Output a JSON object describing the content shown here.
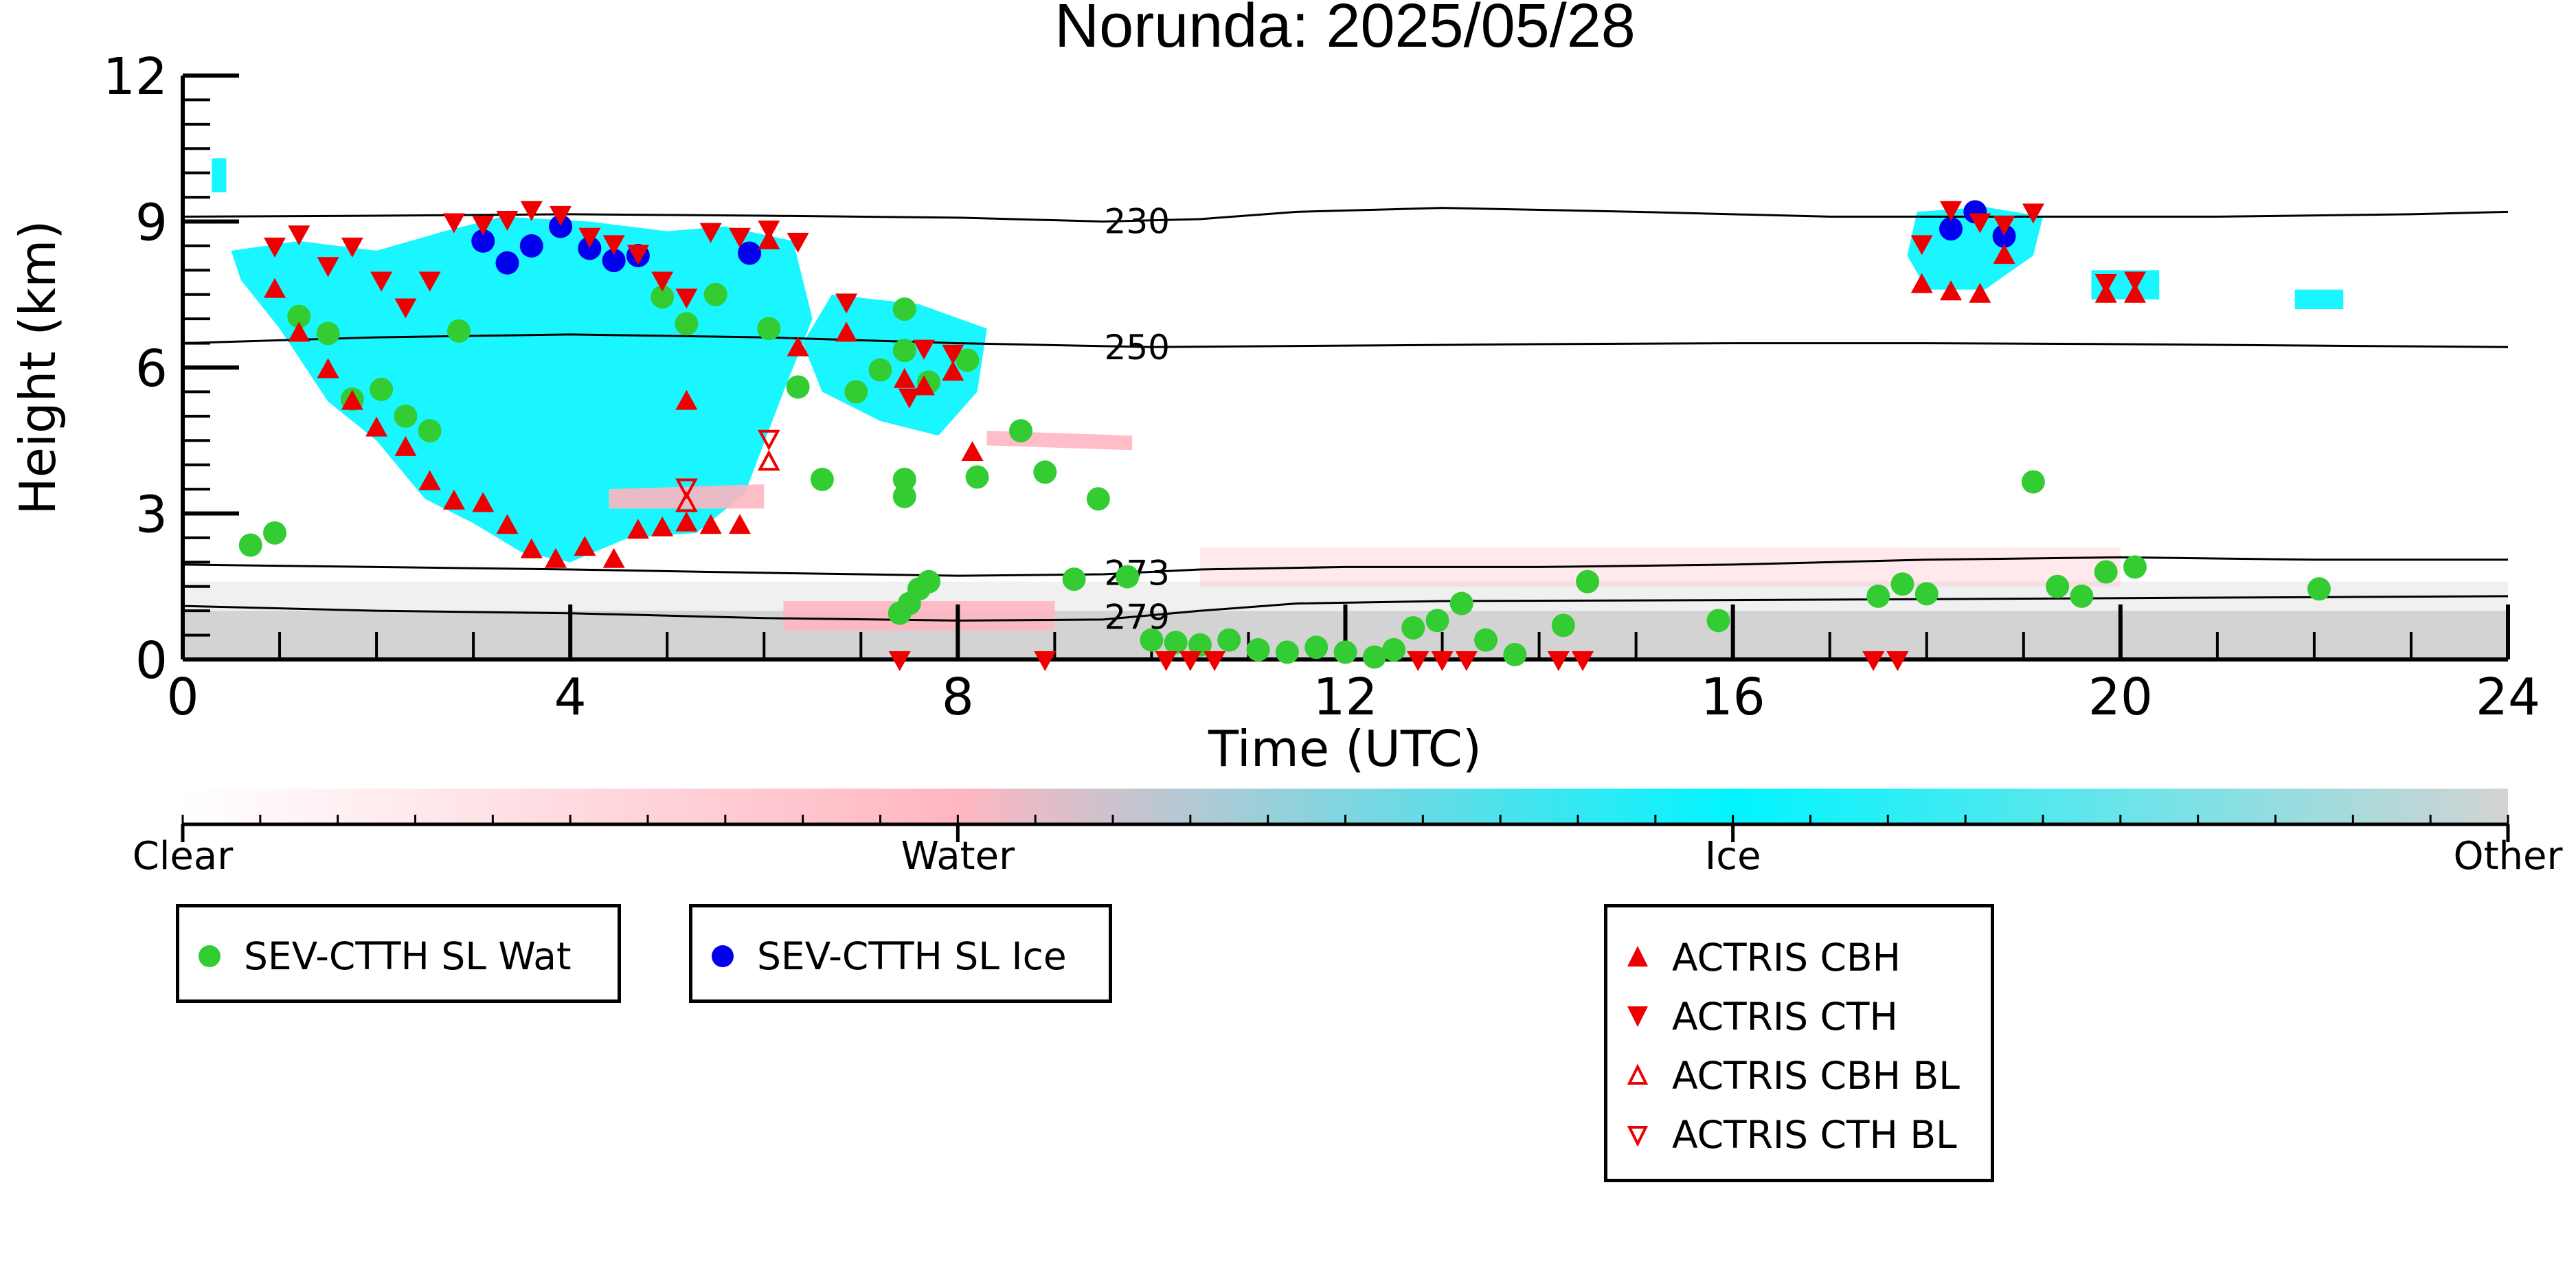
{
  "chart_data": {
    "type": "scatter",
    "title": "Norunda: 2025/05/28",
    "xlabel": "Time (UTC)",
    "ylabel": "Height (km)",
    "xlim": [
      0,
      24
    ],
    "ylim": [
      0,
      12
    ],
    "xticks": [
      "0",
      "4",
      "8",
      "12",
      "16",
      "20",
      "24"
    ],
    "yticks": [
      "0",
      "3",
      "6",
      "9",
      "12"
    ],
    "grid": false,
    "isotherms": [
      {
        "label": "230",
        "x": [
          0,
          2,
          4,
          6,
          8,
          9.5,
          10.5,
          11.5,
          13,
          15,
          17,
          19,
          21,
          23,
          24
        ],
        "y": [
          9.1,
          9.12,
          9.15,
          9.12,
          9.08,
          9.0,
          9.05,
          9.2,
          9.28,
          9.2,
          9.1,
          9.1,
          9.1,
          9.15,
          9.2
        ]
      },
      {
        "label": "250",
        "x": [
          0,
          2,
          4,
          6,
          8,
          10,
          12,
          14,
          16,
          18,
          20,
          22,
          24
        ],
        "y": [
          6.5,
          6.62,
          6.68,
          6.62,
          6.5,
          6.42,
          6.45,
          6.48,
          6.5,
          6.5,
          6.48,
          6.45,
          6.42
        ]
      },
      {
        "label": "273",
        "x": [
          0,
          2,
          4,
          6,
          8,
          9.5,
          10.5,
          12,
          14,
          16,
          18,
          20,
          22,
          24
        ],
        "y": [
          1.95,
          1.9,
          1.85,
          1.78,
          1.72,
          1.75,
          1.85,
          1.9,
          1.9,
          1.95,
          2.05,
          2.1,
          2.05,
          2.05
        ]
      },
      {
        "label": "279",
        "x": [
          0,
          2,
          4,
          6,
          8,
          9.5,
          10.5,
          11.5,
          13,
          16,
          19,
          22,
          24
        ],
        "y": [
          1.1,
          1.0,
          0.95,
          0.85,
          0.8,
          0.82,
          1.0,
          1.15,
          1.2,
          1.22,
          1.25,
          1.28,
          1.3
        ]
      }
    ],
    "background_regions": [
      {
        "category": "Other",
        "x": [
          0,
          24
        ],
        "y": [
          0,
          1.0
        ],
        "opacity": 1.0
      },
      {
        "category": "Other",
        "x": [
          0,
          24
        ],
        "y": [
          1.0,
          1.6
        ],
        "opacity": 0.35
      },
      {
        "category": "Water",
        "x": [
          10.5,
          20
        ],
        "y": [
          1.5,
          2.3
        ],
        "opacity": 0.3
      }
    ],
    "cloud_regions": [
      {
        "category": "Ice",
        "polygon": [
          [
            0.5,
            8.4
          ],
          [
            1.2,
            8.6
          ],
          [
            2.0,
            8.4
          ],
          [
            2.7,
            8.8
          ],
          [
            3.3,
            9.1
          ],
          [
            4.2,
            9.0
          ],
          [
            5.0,
            8.8
          ],
          [
            5.6,
            8.9
          ],
          [
            6.3,
            8.6
          ],
          [
            6.5,
            7.0
          ],
          [
            6.2,
            5.5
          ],
          [
            5.8,
            3.4
          ],
          [
            5.3,
            2.6
          ],
          [
            4.6,
            2.5
          ],
          [
            4.0,
            2.0
          ],
          [
            3.5,
            2.2
          ],
          [
            3.0,
            2.8
          ],
          [
            2.5,
            3.3
          ],
          [
            2.0,
            4.5
          ],
          [
            1.5,
            5.3
          ],
          [
            1.0,
            6.8
          ],
          [
            0.6,
            7.8
          ]
        ]
      },
      {
        "category": "Ice",
        "polygon": [
          [
            6.7,
            7.5
          ],
          [
            7.6,
            7.3
          ],
          [
            8.3,
            6.8
          ],
          [
            8.2,
            5.5
          ],
          [
            7.8,
            4.6
          ],
          [
            7.2,
            4.9
          ],
          [
            6.6,
            5.5
          ],
          [
            6.4,
            6.5
          ]
        ]
      },
      {
        "category": "Ice",
        "polygon": [
          [
            17.9,
            9.2
          ],
          [
            18.6,
            9.3
          ],
          [
            19.2,
            9.1
          ],
          [
            19.1,
            8.3
          ],
          [
            18.6,
            7.6
          ],
          [
            18.0,
            7.6
          ],
          [
            17.8,
            8.3
          ]
        ]
      },
      {
        "category": "Ice",
        "polygon": [
          [
            19.7,
            8.0
          ],
          [
            20.4,
            8.0
          ],
          [
            20.4,
            7.4
          ],
          [
            19.7,
            7.4
          ]
        ]
      },
      {
        "category": "Ice",
        "polygon": [
          [
            21.8,
            7.6
          ],
          [
            22.3,
            7.6
          ],
          [
            22.3,
            7.2
          ],
          [
            21.8,
            7.2
          ]
        ]
      },
      {
        "category": "Ice",
        "polygon": [
          [
            0.3,
            10.3
          ],
          [
            0.45,
            10.3
          ],
          [
            0.45,
            9.6
          ],
          [
            0.3,
            9.6
          ]
        ]
      },
      {
        "category": "Water",
        "polygon": [
          [
            4.4,
            3.5
          ],
          [
            6.0,
            3.6
          ],
          [
            6.0,
            3.1
          ],
          [
            4.4,
            3.1
          ]
        ]
      },
      {
        "category": "Water",
        "polygon": [
          [
            8.3,
            4.7
          ],
          [
            9.8,
            4.6
          ],
          [
            9.8,
            4.3
          ],
          [
            8.3,
            4.4
          ]
        ]
      },
      {
        "category": "Water",
        "polygon": [
          [
            6.2,
            1.2
          ],
          [
            9.0,
            1.2
          ],
          [
            9.0,
            0.6
          ],
          [
            6.2,
            0.6
          ]
        ]
      }
    ],
    "series": [
      {
        "name": "SEV-CTTH SL Wat",
        "marker": "circle",
        "color": "#33cc33",
        "points": [
          [
            0.7,
            2.35
          ],
          [
            0.95,
            2.6
          ],
          [
            1.2,
            7.05
          ],
          [
            1.5,
            6.7
          ],
          [
            1.75,
            5.35
          ],
          [
            2.05,
            5.55
          ],
          [
            2.3,
            5.0
          ],
          [
            2.55,
            4.7
          ],
          [
            2.85,
            6.75
          ],
          [
            4.95,
            7.45
          ],
          [
            5.2,
            6.9
          ],
          [
            5.5,
            7.5
          ],
          [
            6.05,
            6.8
          ],
          [
            6.35,
            5.6
          ],
          [
            6.6,
            3.7
          ],
          [
            6.95,
            5.5
          ],
          [
            7.2,
            5.95
          ],
          [
            7.45,
            7.2
          ],
          [
            7.45,
            6.35
          ],
          [
            7.45,
            3.7
          ],
          [
            7.45,
            3.35
          ],
          [
            7.7,
            5.7
          ],
          [
            8.1,
            6.15
          ],
          [
            8.2,
            3.75
          ],
          [
            8.65,
            4.7
          ],
          [
            8.9,
            3.85
          ],
          [
            9.45,
            3.3
          ],
          [
            9.2,
            1.65
          ],
          [
            9.75,
            1.7
          ],
          [
            7.4,
            0.95
          ],
          [
            7.5,
            1.15
          ],
          [
            7.6,
            1.45
          ],
          [
            7.7,
            1.6
          ],
          [
            10.0,
            0.4
          ],
          [
            10.25,
            0.35
          ],
          [
            10.5,
            0.3
          ],
          [
            10.8,
            0.4
          ],
          [
            11.1,
            0.2
          ],
          [
            11.4,
            0.15
          ],
          [
            11.7,
            0.25
          ],
          [
            12.0,
            0.15
          ],
          [
            12.3,
            0.05
          ],
          [
            12.5,
            0.2
          ],
          [
            12.7,
            0.65
          ],
          [
            12.95,
            0.8
          ],
          [
            13.2,
            1.15
          ],
          [
            13.45,
            0.4
          ],
          [
            13.75,
            0.1
          ],
          [
            14.25,
            0.7
          ],
          [
            14.5,
            1.6
          ],
          [
            15.85,
            0.8
          ],
          [
            17.5,
            1.3
          ],
          [
            17.75,
            1.55
          ],
          [
            18.0,
            1.35
          ],
          [
            19.1,
            3.65
          ],
          [
            19.35,
            1.5
          ],
          [
            19.6,
            1.3
          ],
          [
            19.85,
            1.8
          ],
          [
            20.15,
            1.9
          ],
          [
            22.05,
            1.45
          ]
        ]
      },
      {
        "name": "SEV-CTTH SL Ice",
        "marker": "circle",
        "color": "#0000ee",
        "points": [
          [
            3.1,
            8.6
          ],
          [
            3.35,
            8.15
          ],
          [
            3.6,
            8.5
          ],
          [
            3.9,
            8.9
          ],
          [
            4.2,
            8.45
          ],
          [
            4.45,
            8.2
          ],
          [
            4.7,
            8.3
          ],
          [
            5.85,
            8.35
          ],
          [
            18.25,
            8.85
          ],
          [
            18.5,
            9.2
          ],
          [
            18.8,
            8.7
          ]
        ]
      },
      {
        "name": "ACTRIS CBH",
        "marker": "triangle-up",
        "color": "#ee0000",
        "points": [
          [
            0.95,
            7.6
          ],
          [
            1.2,
            6.7
          ],
          [
            1.5,
            5.95
          ],
          [
            1.75,
            5.3
          ],
          [
            2.0,
            4.75
          ],
          [
            2.3,
            4.35
          ],
          [
            2.55,
            3.65
          ],
          [
            2.8,
            3.25
          ],
          [
            3.1,
            3.2
          ],
          [
            3.35,
            2.75
          ],
          [
            3.6,
            2.25
          ],
          [
            3.85,
            2.05
          ],
          [
            4.15,
            2.3
          ],
          [
            4.45,
            2.05
          ],
          [
            4.7,
            2.65
          ],
          [
            4.95,
            2.7
          ],
          [
            5.2,
            2.8
          ],
          [
            5.45,
            2.75
          ],
          [
            5.75,
            2.75
          ],
          [
            5.2,
            5.3
          ],
          [
            6.05,
            8.6
          ],
          [
            6.35,
            6.4
          ],
          [
            6.85,
            6.7
          ],
          [
            7.45,
            5.75
          ],
          [
            7.65,
            5.6
          ],
          [
            7.95,
            5.9
          ],
          [
            8.15,
            4.25
          ],
          [
            17.95,
            7.7
          ],
          [
            18.25,
            7.55
          ],
          [
            18.55,
            7.5
          ],
          [
            18.8,
            8.3
          ],
          [
            19.85,
            7.5
          ],
          [
            20.15,
            7.5
          ]
        ]
      },
      {
        "name": "ACTRIS CTH",
        "marker": "triangle-down",
        "color": "#ee0000",
        "points": [
          [
            0.95,
            8.5
          ],
          [
            1.2,
            8.75
          ],
          [
            1.5,
            8.1
          ],
          [
            1.75,
            8.5
          ],
          [
            2.05,
            7.8
          ],
          [
            2.3,
            7.25
          ],
          [
            2.55,
            7.8
          ],
          [
            2.8,
            9.0
          ],
          [
            3.1,
            8.95
          ],
          [
            3.35,
            9.05
          ],
          [
            3.6,
            9.25
          ],
          [
            3.9,
            9.15
          ],
          [
            4.2,
            8.7
          ],
          [
            4.45,
            8.55
          ],
          [
            4.7,
            8.35
          ],
          [
            4.95,
            7.8
          ],
          [
            5.2,
            7.45
          ],
          [
            5.45,
            8.8
          ],
          [
            5.75,
            8.7
          ],
          [
            6.05,
            8.85
          ],
          [
            6.35,
            8.6
          ],
          [
            6.85,
            7.35
          ],
          [
            7.5,
            5.4
          ],
          [
            7.65,
            6.4
          ],
          [
            7.95,
            6.3
          ],
          [
            7.4,
            0.0
          ],
          [
            8.9,
            0.0
          ],
          [
            10.15,
            0.0
          ],
          [
            10.4,
            0.0
          ],
          [
            10.65,
            0.0
          ],
          [
            12.75,
            0.0
          ],
          [
            13.0,
            0.0
          ],
          [
            13.25,
            0.0
          ],
          [
            14.2,
            0.0
          ],
          [
            14.45,
            0.0
          ],
          [
            17.45,
            0.0
          ],
          [
            17.7,
            0.0
          ],
          [
            17.95,
            8.55
          ],
          [
            18.25,
            9.25
          ],
          [
            18.55,
            9.0
          ],
          [
            18.8,
            8.95
          ],
          [
            19.1,
            9.2
          ],
          [
            19.85,
            7.75
          ],
          [
            20.15,
            7.8
          ]
        ]
      },
      {
        "name": "ACTRIS CBH BL",
        "marker": "triangle-up-open",
        "color": "#ee0000",
        "points": [
          [
            5.2,
            3.2
          ],
          [
            6.05,
            4.05
          ]
        ]
      },
      {
        "name": "ACTRIS CTH BL",
        "marker": "triangle-down-open",
        "color": "#ee0000",
        "points": [
          [
            5.2,
            3.55
          ],
          [
            6.05,
            4.55
          ]
        ]
      }
    ],
    "colorbar": {
      "labels": [
        "Clear",
        "Water",
        "Ice",
        "Other"
      ],
      "colors": [
        "#ffffff",
        "#ffb6c1",
        "#00f5ff",
        "#d3d3d3"
      ]
    }
  },
  "legends": [
    {
      "entries": [
        "SEV-CTTH SL Wat"
      ]
    },
    {
      "entries": [
        "SEV-CTTH SL Ice"
      ]
    },
    {
      "entries": [
        "ACTRIS CBH",
        "ACTRIS CTH",
        "ACTRIS CBH BL",
        "ACTRIS CTH BL"
      ]
    }
  ]
}
